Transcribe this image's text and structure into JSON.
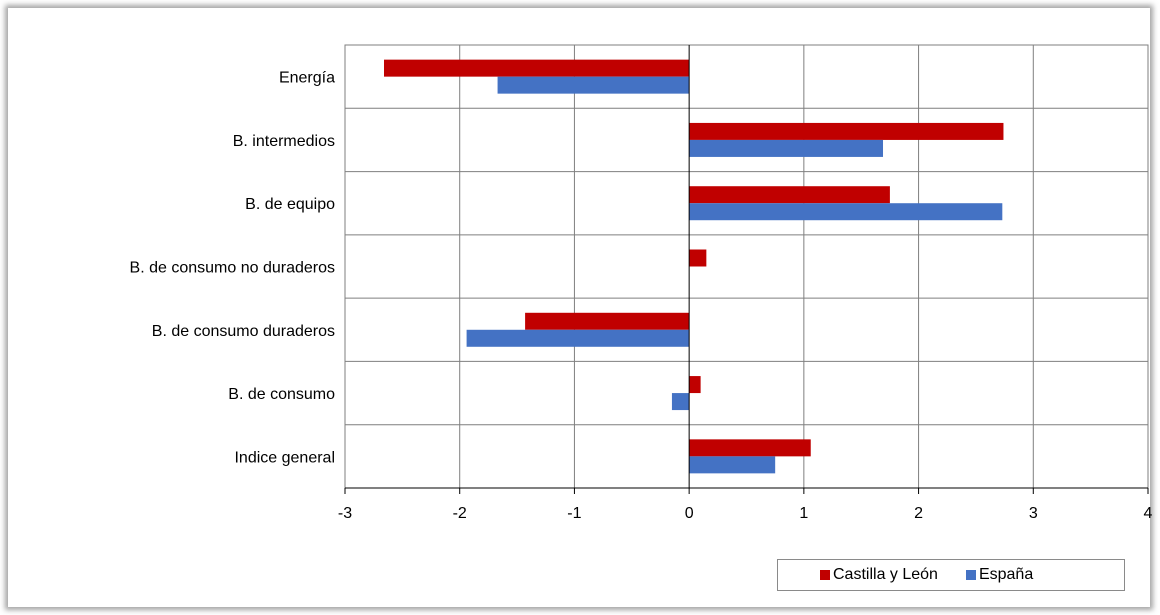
{
  "chart_data": {
    "type": "bar",
    "orientation": "horizontal",
    "categories": [
      "Energía",
      "B. intermedios",
      "B. de equipo",
      "B. de consumo no duraderos",
      "B. de consumo duraderos",
      "B. de consumo",
      "Indice general"
    ],
    "series": [
      {
        "name": "Castilla y León",
        "color": "#c00000",
        "values": [
          -2.66,
          2.74,
          1.75,
          0.15,
          -1.43,
          0.1,
          1.06
        ]
      },
      {
        "name": "España",
        "color": "#4472c4",
        "values": [
          -1.67,
          1.69,
          2.73,
          0.0,
          -1.94,
          -0.15,
          0.75
        ]
      }
    ],
    "xlim": [
      -3,
      4
    ],
    "xticks": [
      "-3",
      "-2",
      "-1",
      "0",
      "1",
      "2",
      "3",
      "4"
    ],
    "grid": true,
    "legend_position": "bottom-right",
    "title": "",
    "xlabel": "",
    "ylabel": ""
  }
}
